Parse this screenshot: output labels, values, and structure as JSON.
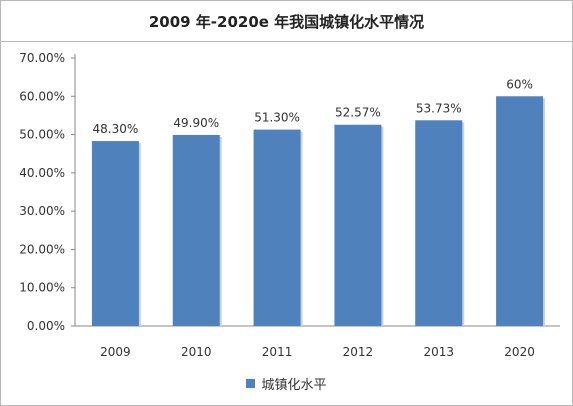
{
  "chart_data": {
    "type": "bar",
    "title": "2009 年-2020e 年我国城镇化水平情况",
    "categories": [
      "2009",
      "2010",
      "2011",
      "2012",
      "2013",
      "2020"
    ],
    "series": [
      {
        "name": "城镇化水平",
        "values": [
          48.3,
          49.9,
          51.3,
          52.57,
          53.73,
          60
        ],
        "labels": [
          "48.30%",
          "49.90%",
          "51.30%",
          "52.57%",
          "53.73%",
          "60%"
        ]
      }
    ],
    "ylim": [
      0,
      70
    ],
    "yticks": [
      "0.00%",
      "10.00%",
      "20.00%",
      "30.00%",
      "40.00%",
      "50.00%",
      "60.00%",
      "70.00%"
    ],
    "grid": false,
    "legend_position": "bottom",
    "bar_color": "#4f81bd"
  }
}
